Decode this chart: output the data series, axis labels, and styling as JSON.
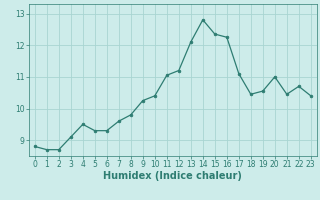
{
  "x": [
    0,
    1,
    2,
    3,
    4,
    5,
    6,
    7,
    8,
    9,
    10,
    11,
    12,
    13,
    14,
    15,
    16,
    17,
    18,
    19,
    20,
    21,
    22,
    23
  ],
  "y": [
    8.8,
    8.7,
    8.7,
    9.1,
    9.5,
    9.3,
    9.3,
    9.6,
    9.8,
    10.25,
    10.4,
    11.05,
    11.2,
    12.1,
    12.8,
    12.35,
    12.25,
    11.1,
    10.45,
    10.55,
    11.0,
    10.45,
    10.7,
    10.4
  ],
  "line_color": "#2e7d72",
  "marker": "o",
  "marker_size": 2.0,
  "linewidth": 0.9,
  "background_color": "#cdecea",
  "grid_color": "#a8d5d2",
  "xlabel": "Humidex (Indice chaleur)",
  "ylabel": "",
  "title": "",
  "xlim": [
    -0.5,
    23.5
  ],
  "ylim": [
    8.5,
    13.3
  ],
  "yticks": [
    9,
    10,
    11,
    12,
    13
  ],
  "xticks": [
    0,
    1,
    2,
    3,
    4,
    5,
    6,
    7,
    8,
    9,
    10,
    11,
    12,
    13,
    14,
    15,
    16,
    17,
    18,
    19,
    20,
    21,
    22,
    23
  ],
  "tick_fontsize": 5.5,
  "xlabel_fontsize": 7.0,
  "tick_color": "#2e7d72",
  "axis_color": "#2e7d72"
}
